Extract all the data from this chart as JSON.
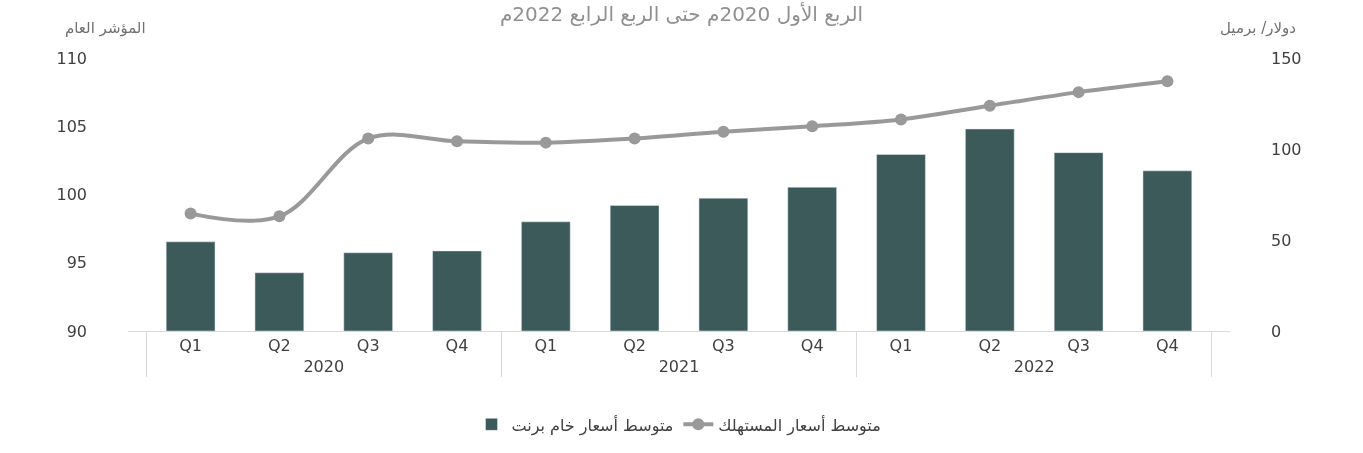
{
  "chart_data": {
    "type": "bar",
    "title": "الربع الأول 2020م حتى الربع الرابع 2022م",
    "ylabel": "المؤشر العام",
    "y2label": "دولار/ برميل",
    "categories": [
      "Q1",
      "Q2",
      "Q3",
      "Q4",
      "Q1",
      "Q2",
      "Q3",
      "Q4",
      "Q1",
      "Q2",
      "Q3",
      "Q4"
    ],
    "annotations": [
      "2020",
      "2021",
      "2022"
    ],
    "series": [
      {
        "name": "متوسط أسعار خام برنت",
        "axis": "y2",
        "color": "#3d5a5b",
        "values": [
          49,
          32,
          43,
          44,
          60,
          69,
          73,
          79,
          97,
          111,
          98,
          88
        ]
      },
      {
        "name": "متوسط أسعار المستهلك",
        "type": "line",
        "color": "#999999",
        "marker": "circle",
        "values": [
          98.6,
          98.4,
          104.1,
          103.9,
          103.8,
          104.1,
          104.6,
          105.0,
          105.5,
          106.5,
          107.5,
          108.3
        ]
      }
    ],
    "ylim": [
      90,
      110
    ],
    "yticks": [
      90,
      95,
      100,
      105,
      110
    ],
    "y2lim": [
      0,
      150
    ],
    "y2ticks": [
      0,
      50,
      100,
      150
    ],
    "legend": "bottom"
  }
}
